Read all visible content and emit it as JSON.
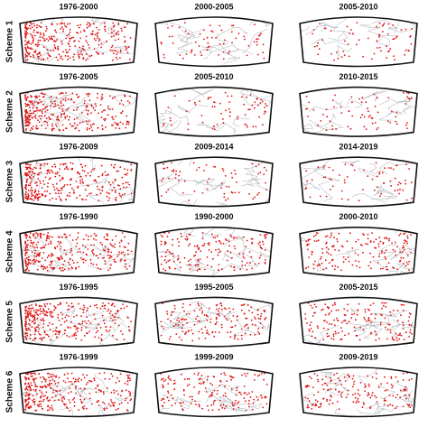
{
  "rows": [
    {
      "label": "Scheme 1",
      "panels": [
        "1976-2000",
        "2000-2005",
        "2005-2010"
      ]
    },
    {
      "label": "Scheme 2",
      "panels": [
        "1976-2005",
        "2005-2010",
        "2010-2015"
      ]
    },
    {
      "label": "Scheme 3",
      "panels": [
        "1976-2009",
        "2009-2014",
        "2014-2019"
      ]
    },
    {
      "label": "Scheme 4",
      "panels": [
        "1976-1990",
        "1990-2000",
        "2000-2010"
      ]
    },
    {
      "label": "Scheme 5",
      "panels": [
        "1976-1995",
        "1995-2005",
        "2005-2015"
      ]
    },
    {
      "label": "Scheme 6",
      "panels": [
        "1976-1999",
        "1999-2009",
        "2009-2019"
      ]
    }
  ]
}
